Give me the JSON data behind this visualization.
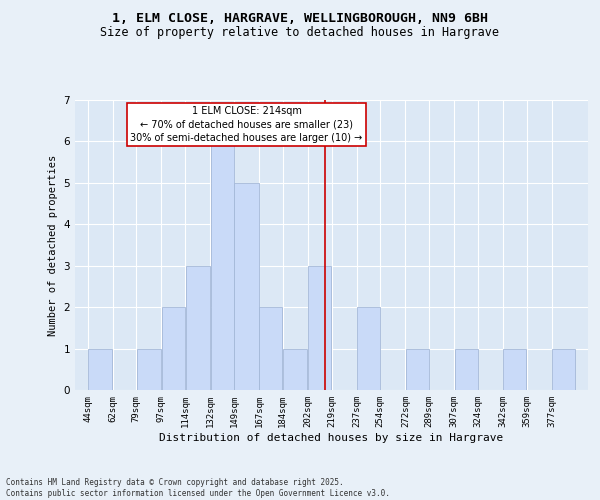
{
  "title": "1, ELM CLOSE, HARGRAVE, WELLINGBOROUGH, NN9 6BH",
  "subtitle": "Size of property relative to detached houses in Hargrave",
  "xlabel": "Distribution of detached houses by size in Hargrave",
  "ylabel": "Number of detached properties",
  "bin_edges": [
    44,
    62,
    79,
    97,
    114,
    132,
    149,
    167,
    184,
    202,
    219,
    237,
    254,
    272,
    289,
    307,
    324,
    342,
    359,
    377,
    394
  ],
  "bin_counts": [
    1,
    0,
    1,
    2,
    3,
    6,
    5,
    2,
    1,
    3,
    0,
    2,
    0,
    1,
    0,
    1,
    0,
    1,
    0,
    1
  ],
  "bar_color": "#c9daf8",
  "bar_edge_color": "#a4b8d8",
  "vline_x": 214,
  "vline_color": "#cc0000",
  "annotation_text": "1 ELM CLOSE: 214sqm\n← 70% of detached houses are smaller (23)\n30% of semi-detached houses are larger (10) →",
  "annotation_box_color": "#ffffff",
  "annotation_box_edge_color": "#cc0000",
  "ylim": [
    0,
    7
  ],
  "yticks": [
    0,
    1,
    2,
    3,
    4,
    5,
    6,
    7
  ],
  "fig_bg_color": "#e8f0f8",
  "ax_bg_color": "#dce8f5",
  "footer_text": "Contains HM Land Registry data © Crown copyright and database right 2025.\nContains public sector information licensed under the Open Government Licence v3.0.",
  "title_fontsize": 9.5,
  "subtitle_fontsize": 8.5,
  "xlabel_fontsize": 8,
  "ylabel_fontsize": 7.5,
  "tick_fontsize": 6.5,
  "annotation_fontsize": 7,
  "footer_fontsize": 5.5
}
